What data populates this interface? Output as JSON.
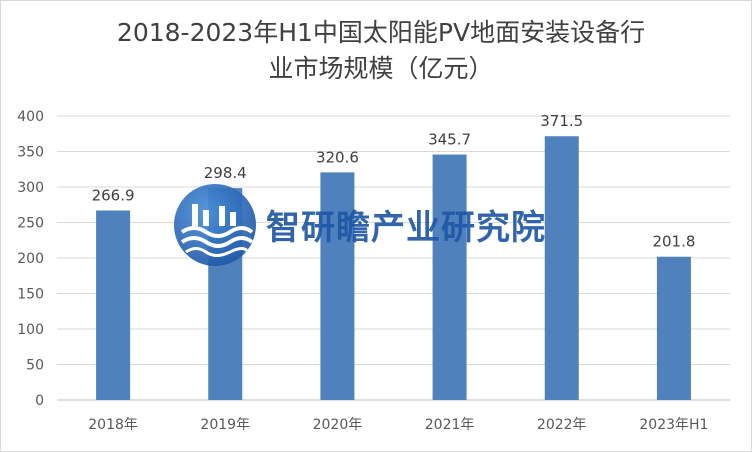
{
  "chart_data": {
    "type": "bar",
    "title": "2018-2023年H1中国太阳能PV地面安装设备行业市场规模（亿元）",
    "title_lines": [
      "2018-2023年H1中国太阳能PV地面安装设备行",
      "业市场规模（亿元）"
    ],
    "categories": [
      "2018年",
      "2019年",
      "2020年",
      "2021年",
      "2022年",
      "2023年H1"
    ],
    "values": [
      266.9,
      298.4,
      320.6,
      345.7,
      371.5,
      201.8
    ],
    "data_labels": [
      "266.9",
      "298.4",
      "320.6",
      "345.7",
      "371.5",
      "201.8"
    ],
    "ylim": [
      0,
      400
    ],
    "yticks": [
      0,
      50,
      100,
      150,
      200,
      250,
      300,
      350,
      400
    ],
    "grid": true,
    "legend": "none",
    "bar_color": "#4f81bd",
    "xlabel": "",
    "ylabel": ""
  },
  "watermark": {
    "text": "智研瞻产业研究院",
    "logo_icon": "wave-logo-icon",
    "color": "#1f57a6"
  }
}
